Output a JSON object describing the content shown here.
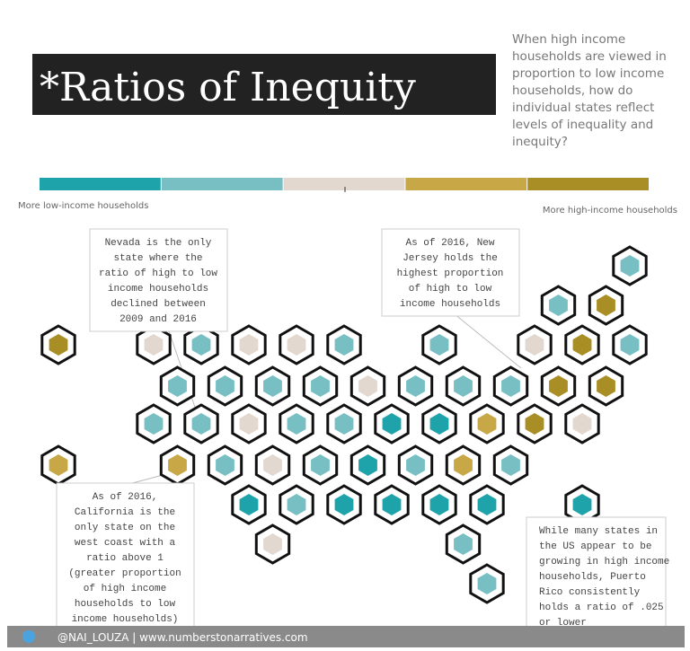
{
  "header": {
    "title": "*Ratios of Inequity",
    "question": [
      "When high income",
      "households are viewed in",
      "proportion to low income",
      "households, how do",
      "individual states reflect",
      "levels of inequality and",
      "inequity?"
    ]
  },
  "legend": {
    "colors": [
      "#1fa3ab",
      "#77bfc3",
      "#e2d8d0",
      "#c8a846",
      "#a88e25"
    ],
    "low_label": "More low-income households",
    "high_label": "More high-income households"
  },
  "annotations": [
    [
      "Nevada is the only",
      "state where the",
      "ratio of high to low",
      "income households",
      "declined between",
      "2009 and 2016"
    ],
    [
      "As of 2016, New",
      "Jersey holds the",
      "highest proportion",
      "of high to low",
      "income households"
    ],
    [
      "As of 2016,",
      "California is the",
      "only state on the",
      "west coast with a",
      "ratio above 1",
      "(greater proportion",
      "of high income",
      "households to low",
      "income households)"
    ],
    [
      "While many states in",
      "the US appear to be",
      "growing in high income",
      "households, Puerto",
      "Rico consistently",
      "holds a ratio of .025",
      "or lower"
    ]
  ],
  "tile_rows": [
    [
      "#77bfc3"
    ],
    [
      "#77bfc3",
      "#a88e25"
    ],
    [
      "#a88e25",
      "#e2d8d0",
      "#77bfc3",
      "#e2d8d0",
      "#e2d8d0",
      "#77bfc3",
      "#77bfc3",
      "#e2d8d0",
      "#a88e25",
      "#77bfc3"
    ],
    [
      "#77bfc3",
      "#77bfc3",
      "#77bfc3",
      "#77bfc3",
      "#e2d8d0",
      "#77bfc3",
      "#77bfc3",
      "#77bfc3",
      "#a88e25",
      "#a88e25"
    ],
    [
      "#77bfc3",
      "#77bfc3",
      "#e2d8d0",
      "#77bfc3",
      "#77bfc3",
      "#1fa3ab",
      "#1fa3ab",
      "#c8a846",
      "#a88e25",
      "#e2d8d0"
    ],
    [
      "#c8a846",
      "#c8a846",
      "#77bfc3",
      "#e2d8d0",
      "#77bfc3",
      "#1fa3ab",
      "#77bfc3",
      "#c8a846",
      "#77bfc3"
    ],
    [
      "#1fa3ab",
      "#77bfc3",
      "#1fa3ab",
      "#1fa3ab",
      "#1fa3ab",
      "#1fa3ab",
      "#1fa3ab"
    ],
    [
      "#e2d8d0",
      "#77bfc3"
    ],
    [
      "#77bfc3"
    ]
  ],
  "footer": "@NAI_LOUZA | www.numberstonarratives.com"
}
